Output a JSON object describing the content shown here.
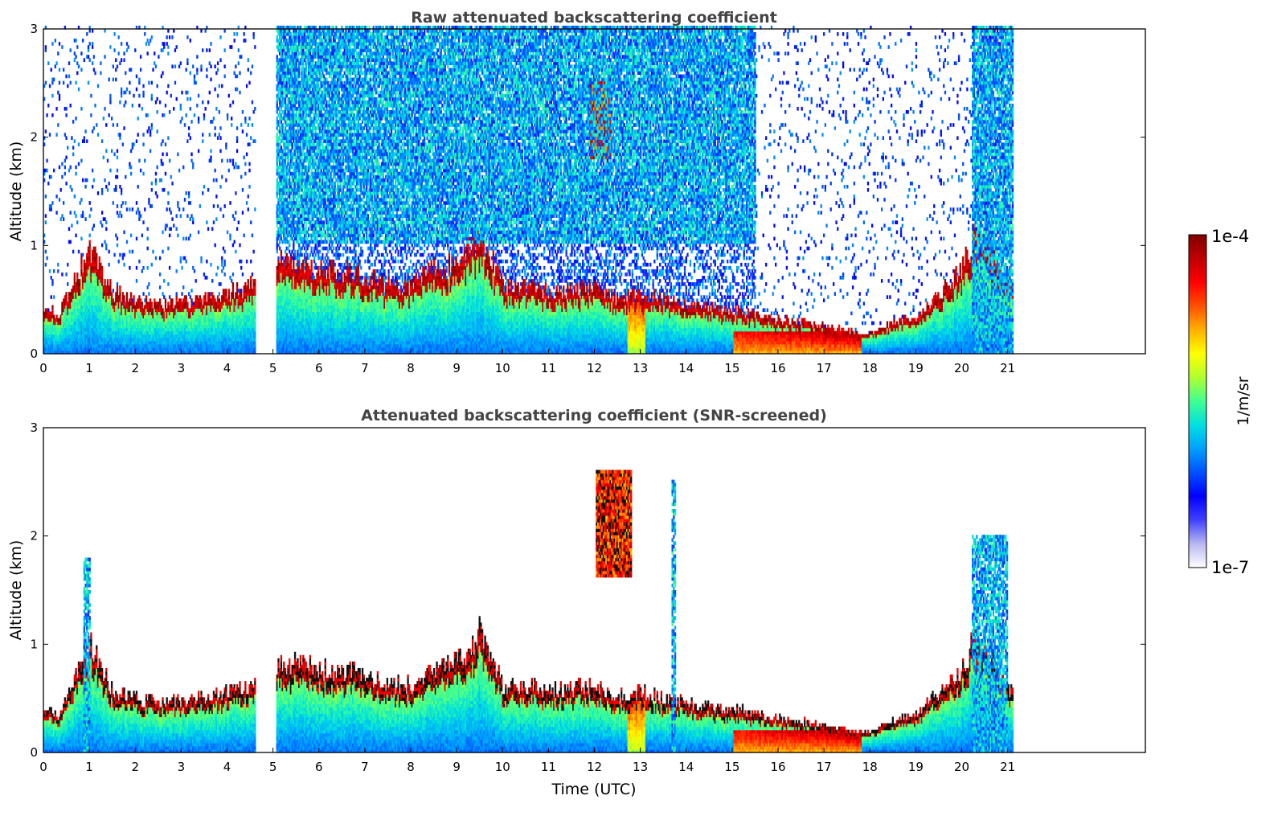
{
  "chart_data": [
    {
      "type": "heatmap",
      "title": "Raw attenuated backscattering coefficient",
      "xlabel": "",
      "ylabel": "Altitude (km)",
      "xlim": [
        0,
        24
      ],
      "ylim": [
        0,
        3
      ],
      "x_ticks": [
        0,
        1,
        2,
        3,
        4,
        5,
        6,
        7,
        8,
        9,
        10,
        11,
        12,
        13,
        14,
        15,
        16,
        17,
        18,
        19,
        20,
        21
      ],
      "y_ticks": [
        0,
        1,
        2,
        3
      ],
      "data_coverage_hours": [
        [
          0,
          4.6
        ],
        [
          5.05,
          21.1
        ]
      ],
      "boundary_layer_top_km": [
        [
          0.0,
          0.4
        ],
        [
          0.3,
          0.3
        ],
        [
          1.0,
          0.9
        ],
        [
          1.5,
          0.5
        ],
        [
          2.5,
          0.4
        ],
        [
          3.5,
          0.45
        ],
        [
          4.5,
          0.55
        ],
        [
          5.1,
          0.75
        ],
        [
          6.0,
          0.7
        ],
        [
          7.0,
          0.65
        ],
        [
          7.5,
          0.55
        ],
        [
          8.0,
          0.55
        ],
        [
          8.5,
          0.7
        ],
        [
          9.0,
          0.75
        ],
        [
          9.5,
          1.0
        ],
        [
          10.0,
          0.55
        ],
        [
          10.5,
          0.55
        ],
        [
          11.0,
          0.5
        ],
        [
          12.0,
          0.55
        ],
        [
          12.5,
          0.45
        ],
        [
          13.0,
          0.5
        ],
        [
          14.0,
          0.4
        ],
        [
          15.0,
          0.35
        ],
        [
          16.0,
          0.28
        ],
        [
          17.0,
          0.22
        ],
        [
          17.9,
          0.15
        ],
        [
          18.5,
          0.25
        ],
        [
          19.0,
          0.3
        ],
        [
          19.5,
          0.5
        ],
        [
          20.0,
          0.7
        ],
        [
          20.3,
          1.0
        ],
        [
          21.1,
          0.5
        ]
      ],
      "features": [
        {
          "label": "elevated layer near 12 UTC",
          "x_range": [
            11.9,
            12.35
          ],
          "alt_km": [
            1.8,
            2.5
          ]
        },
        {
          "label": "noisy clear-sky region",
          "x_range": [
            5,
            15.5
          ],
          "alt_km": [
            1.0,
            3.0
          ]
        },
        {
          "label": "deep aerosol column",
          "x_range": [
            20.2,
            21.1
          ],
          "alt_km": [
            0,
            3.0
          ]
        }
      ]
    },
    {
      "type": "heatmap",
      "title": "Attenuated backscattering coefficient (SNR-screened)",
      "xlabel": "Time (UTC)",
      "ylabel": "Altitude (km)",
      "xlim": [
        0,
        24
      ],
      "ylim": [
        0,
        3
      ],
      "x_ticks": [
        0,
        1,
        2,
        3,
        4,
        5,
        6,
        7,
        8,
        9,
        10,
        11,
        12,
        13,
        14,
        15,
        16,
        17,
        18,
        19,
        20,
        21
      ],
      "y_ticks": [
        0,
        1,
        2,
        3
      ],
      "data_coverage_hours": [
        [
          0,
          4.6
        ],
        [
          5.05,
          21.1
        ]
      ],
      "features": [
        {
          "label": "plume at ~1 UTC",
          "x_range": [
            0.85,
            1.0
          ],
          "alt_km": [
            0,
            1.8
          ]
        },
        {
          "label": "elevated layer near 12 UTC",
          "x_range": [
            12.0,
            12.8
          ],
          "alt_km": [
            1.6,
            2.6
          ]
        },
        {
          "label": "plume at ~13.7 UTC",
          "x_range": [
            13.65,
            13.75
          ],
          "alt_km": [
            0,
            2.5
          ]
        },
        {
          "label": "aerosol column 20-21 UTC",
          "x_range": [
            20.2,
            21.0
          ],
          "alt_km": [
            0,
            2.0
          ]
        }
      ]
    }
  ],
  "colorbar": {
    "label": "1/m/sr",
    "max_label": "1e-4",
    "min_label": "1e-7",
    "scale": "log",
    "range": [
      1e-07,
      0.0001
    ],
    "colors": [
      "#ffffff",
      "#b8b8f0",
      "#4040ff",
      "#0000ff",
      "#0050ff",
      "#00a0ff",
      "#00e0e0",
      "#40ff90",
      "#b0ff30",
      "#ffff00",
      "#ffb000",
      "#ff5000",
      "#ff0000",
      "#c00000",
      "#800000"
    ]
  }
}
